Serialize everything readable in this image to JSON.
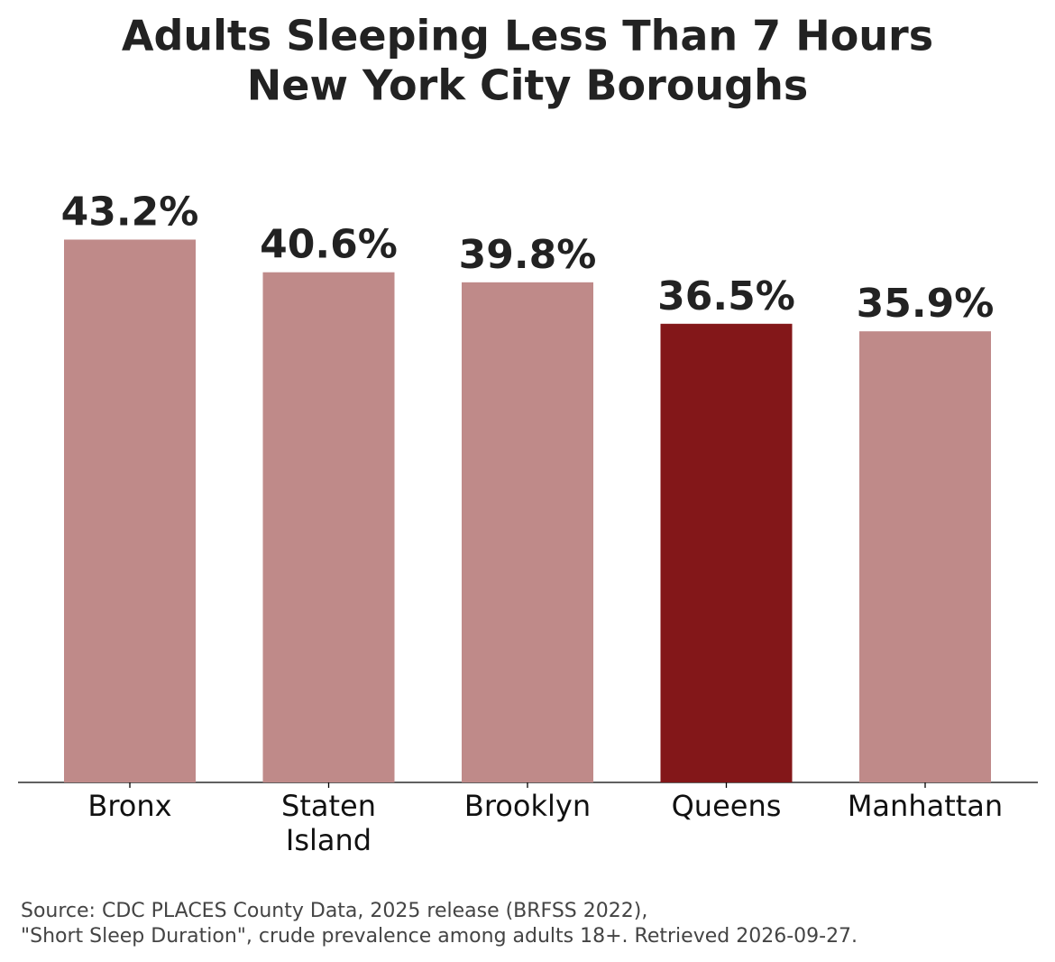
{
  "chart_data": {
    "type": "bar",
    "title": [
      "Adults Sleeping Less Than 7 Hours",
      "New York City Boroughs"
    ],
    "categories": [
      "Bronx",
      "Staten Island",
      "Brooklyn",
      "Queens",
      "Manhattan"
    ],
    "values": [
      43.2,
      40.6,
      39.8,
      36.5,
      35.9
    ],
    "value_labels": [
      "43.2%",
      "40.6%",
      "39.8%",
      "36.5%",
      "35.9%"
    ],
    "colors": [
      "#bf8a89",
      "#bf8a89",
      "#bf8a89",
      "#831719",
      "#bf8a89"
    ],
    "ylim": [
      0,
      49.7
    ],
    "grid": false,
    "source": [
      "Source: CDC PLACES County Data, 2025 release (BRFSS 2022),",
      "\"Short Sleep Duration\", crude prevalence among adults 18+. Retrieved 2026-09-27."
    ]
  }
}
